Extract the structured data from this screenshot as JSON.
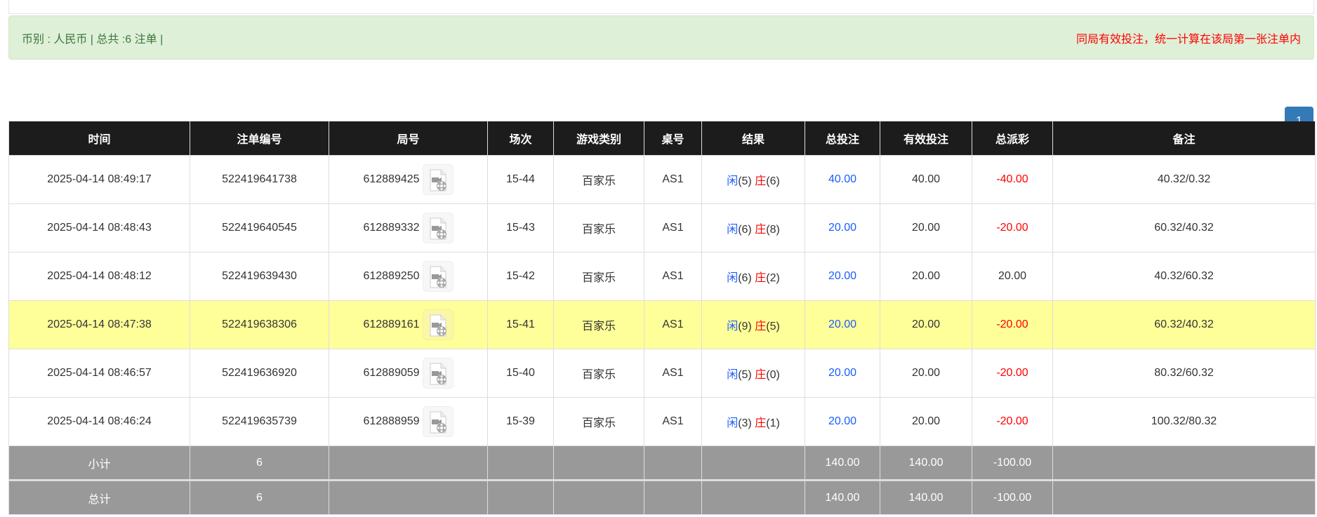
{
  "summary": {
    "left": "币别 : 人民币 | 总共 :6 注单 |",
    "right": "同局有效投注，统一计算在该局第一张注单内"
  },
  "pagination": {
    "current": "1"
  },
  "colors": {
    "player": "#1a5cff",
    "negative": "#ff0000",
    "highlight_row": "#ffff99",
    "header_bg": "#1c1c1c",
    "footer_bg": "#999999",
    "alert_bg": "#dff0d8"
  },
  "table": {
    "headers": [
      "时间",
      "注单编号",
      "局号",
      "场次",
      "游戏类别",
      "桌号",
      "结果",
      "总投注",
      "有效投注",
      "总派彩",
      "备注"
    ],
    "rows": [
      {
        "time": "2025-04-14 08:49:17",
        "bet_id": "522419641738",
        "round": "612889425",
        "session": "15-44",
        "game": "百家乐",
        "table": "AS1",
        "p": "闲",
        "pv": "(5)",
        "b": "庄",
        "bv": "(6)",
        "total": "40.00",
        "valid": "40.00",
        "payout": "-40.00",
        "neg": true,
        "note": "40.32/0.32",
        "hl": false
      },
      {
        "time": "2025-04-14 08:48:43",
        "bet_id": "522419640545",
        "round": "612889332",
        "session": "15-43",
        "game": "百家乐",
        "table": "AS1",
        "p": "闲",
        "pv": "(6)",
        "b": "庄",
        "bv": "(8)",
        "total": "20.00",
        "valid": "20.00",
        "payout": "-20.00",
        "neg": true,
        "note": "60.32/40.32",
        "hl": false
      },
      {
        "time": "2025-04-14 08:48:12",
        "bet_id": "522419639430",
        "round": "612889250",
        "session": "15-42",
        "game": "百家乐",
        "table": "AS1",
        "p": "闲",
        "pv": "(6)",
        "b": "庄",
        "bv": "(2)",
        "total": "20.00",
        "valid": "20.00",
        "payout": "20.00",
        "neg": false,
        "note": "40.32/60.32",
        "hl": false
      },
      {
        "time": "2025-04-14 08:47:38",
        "bet_id": "522419638306",
        "round": "612889161",
        "session": "15-41",
        "game": "百家乐",
        "table": "AS1",
        "p": "闲",
        "pv": "(9)",
        "b": "庄",
        "bv": "(5)",
        "total": "20.00",
        "valid": "20.00",
        "payout": "-20.00",
        "neg": true,
        "note": "60.32/40.32",
        "hl": true
      },
      {
        "time": "2025-04-14 08:46:57",
        "bet_id": "522419636920",
        "round": "612889059",
        "session": "15-40",
        "game": "百家乐",
        "table": "AS1",
        "p": "闲",
        "pv": "(5)",
        "b": "庄",
        "bv": "(0)",
        "total": "20.00",
        "valid": "20.00",
        "payout": "-20.00",
        "neg": true,
        "note": "80.32/60.32",
        "hl": false
      },
      {
        "time": "2025-04-14 08:46:24",
        "bet_id": "522419635739",
        "round": "612888959",
        "session": "15-39",
        "game": "百家乐",
        "table": "AS1",
        "p": "闲",
        "pv": "(3)",
        "b": "庄",
        "bv": "(1)",
        "total": "20.00",
        "valid": "20.00",
        "payout": "-20.00",
        "neg": true,
        "note": "100.32/80.32",
        "hl": false
      }
    ],
    "subtotal": {
      "label": "小计",
      "count": "6",
      "total": "140.00",
      "valid": "140.00",
      "payout": "-100.00"
    },
    "grandtotal": {
      "label": "总计",
      "count": "6",
      "total": "140.00",
      "valid": "140.00",
      "payout": "-100.00"
    }
  }
}
